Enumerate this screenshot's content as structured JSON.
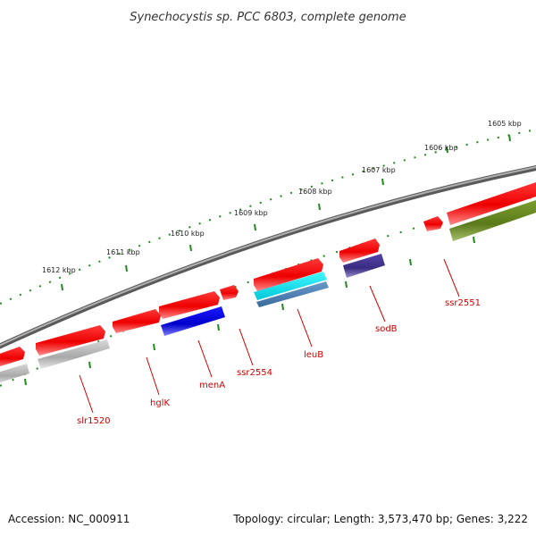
{
  "title": "Synechocystis sp. PCC 6803, complete genome",
  "kbp_labels": [
    "1605 kbp",
    "1606 kbp",
    "1607 kbp",
    "1608 kbp",
    "1609 kbp",
    "1610 kbp",
    "1611 kbp",
    "1612 kbp"
  ],
  "gene_labels": [
    "ssr2551",
    "sodB",
    "leuB",
    "ssr2554",
    "menA",
    "hglK",
    "slr1520"
  ],
  "footer": {
    "accession": "Accession: NC_000911",
    "topology": "Topology: circular; Length: 3,573,470 bp; Genes: 3,222"
  },
  "colors": {
    "backbone": "#888888",
    "ticks": "#228822",
    "gene_red": "#ee0000",
    "gene_blue": "#0000dd",
    "gene_cyan": "#00e5ee",
    "gene_steel": "#4477aa",
    "gene_navy": "#443388",
    "gene_olive": "#6b8e23",
    "gene_gray": "#bbbbbb"
  }
}
